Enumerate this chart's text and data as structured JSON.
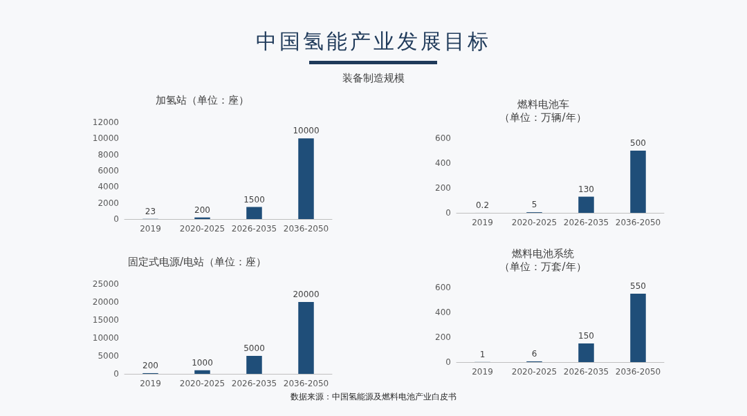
{
  "chart_data": [
    {
      "type": "other",
      "title": "中国氢能产业发展目标",
      "subtitle": "装备制造规模",
      "annotations": [
        "数据来源：中国氢能源及燃料电池产业白皮书"
      ]
    },
    {
      "type": "bar",
      "title": "加氢站（单位：座）",
      "categories": [
        "2019",
        "2020-2025",
        "2026-2035",
        "2036-2050"
      ],
      "values": [
        23,
        200,
        1500,
        10000
      ],
      "color": "#1f4e79",
      "ylim": [
        0,
        12000
      ],
      "yticks": [
        0,
        2000,
        4000,
        6000,
        8000,
        10000,
        12000
      ],
      "data_labels": true,
      "grid": false
    },
    {
      "type": "bar",
      "title": "燃料电池车",
      "subtitle": "（单位：万辆/年）",
      "categories": [
        "2019",
        "2020-2025",
        "2026-2035",
        "2036-2050"
      ],
      "values": [
        0.2,
        5,
        130,
        500
      ],
      "color": "#1f4e79",
      "ylim": [
        0,
        600
      ],
      "yticks": [
        0,
        200,
        400,
        600
      ],
      "data_labels": true,
      "grid": false
    },
    {
      "type": "bar",
      "title": "固定式电源/电站（单位：座）",
      "categories": [
        "2019",
        "2020-2025",
        "2026-2035",
        "2036-2050"
      ],
      "values": [
        200,
        1000,
        5000,
        20000
      ],
      "color": "#1f4e79",
      "ylim": [
        0,
        25000
      ],
      "yticks": [
        0,
        5000,
        10000,
        15000,
        20000,
        25000
      ],
      "data_labels": true,
      "grid": false
    },
    {
      "type": "bar",
      "title": "燃料电池系统",
      "subtitle": "（单位：万套/年）",
      "categories": [
        "2019",
        "2020-2025",
        "2026-2035",
        "2036-2050"
      ],
      "values": [
        1,
        6,
        150,
        550
      ],
      "color": "#1f4e79",
      "ylim": [
        0,
        600
      ],
      "yticks": [
        0,
        200,
        400,
        600
      ],
      "data_labels": true,
      "grid": false
    }
  ]
}
